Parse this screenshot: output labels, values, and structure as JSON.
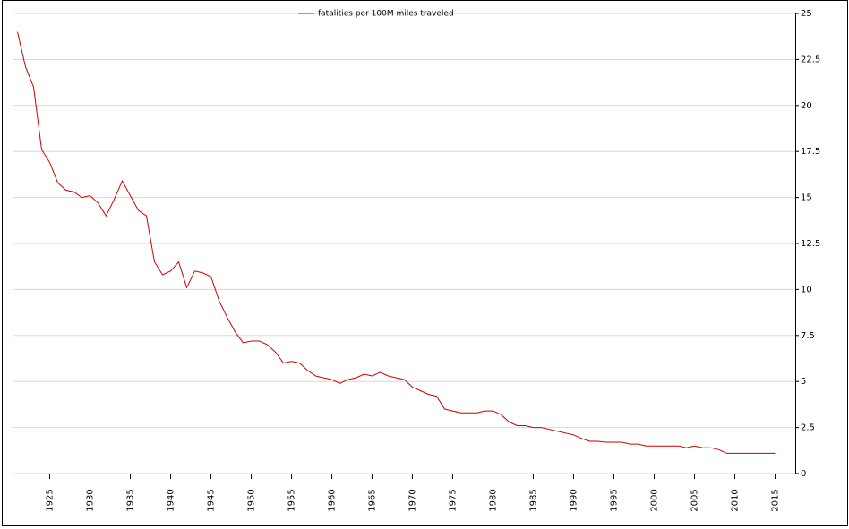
{
  "chart_data": {
    "type": "line",
    "x": [
      1921,
      1922,
      1923,
      1924,
      1925,
      1926,
      1927,
      1928,
      1929,
      1930,
      1931,
      1932,
      1933,
      1934,
      1935,
      1936,
      1937,
      1938,
      1939,
      1940,
      1941,
      1942,
      1943,
      1944,
      1945,
      1946,
      1947,
      1948,
      1949,
      1950,
      1951,
      1952,
      1953,
      1954,
      1955,
      1956,
      1957,
      1958,
      1959,
      1960,
      1961,
      1962,
      1963,
      1964,
      1965,
      1966,
      1967,
      1968,
      1969,
      1970,
      1971,
      1972,
      1973,
      1974,
      1975,
      1976,
      1977,
      1978,
      1979,
      1980,
      1981,
      1982,
      1983,
      1984,
      1985,
      1986,
      1987,
      1988,
      1989,
      1990,
      1991,
      1992,
      1993,
      1994,
      1995,
      1996,
      1997,
      1998,
      1999,
      2000,
      2001,
      2002,
      2003,
      2004,
      2005,
      2006,
      2007,
      2008,
      2009,
      2010,
      2011,
      2012,
      2013,
      2014,
      2015
    ],
    "series": [
      {
        "name": "fatalities per 100M miles traveled",
        "color": "#cc0000",
        "values": [
          24.0,
          22.1,
          21.0,
          17.6,
          16.9,
          15.8,
          15.4,
          15.3,
          15.0,
          15.1,
          14.7,
          14.0,
          14.9,
          15.9,
          15.1,
          14.3,
          14.0,
          11.5,
          10.8,
          11.0,
          11.5,
          10.1,
          11.0,
          10.9,
          10.7,
          9.4,
          8.5,
          7.7,
          7.1,
          7.2,
          7.2,
          7.0,
          6.6,
          6.0,
          6.1,
          6.0,
          5.6,
          5.3,
          5.2,
          5.1,
          4.9,
          5.1,
          5.2,
          5.4,
          5.3,
          5.5,
          5.3,
          5.2,
          5.1,
          4.7,
          4.5,
          4.3,
          4.2,
          3.5,
          3.4,
          3.3,
          3.3,
          3.3,
          3.4,
          3.4,
          3.2,
          2.8,
          2.6,
          2.6,
          2.5,
          2.5,
          2.4,
          2.3,
          2.2,
          2.1,
          1.9,
          1.75,
          1.75,
          1.7,
          1.7,
          1.7,
          1.6,
          1.6,
          1.5,
          1.5,
          1.5,
          1.5,
          1.5,
          1.4,
          1.5,
          1.4,
          1.4,
          1.3,
          1.1,
          1.1,
          1.1,
          1.1,
          1.1,
          1.1,
          1.1
        ]
      }
    ],
    "xlim": [
      1920.5,
      2017.5
    ],
    "xticks": [
      1925,
      1930,
      1935,
      1940,
      1945,
      1950,
      1955,
      1960,
      1965,
      1970,
      1975,
      1980,
      1985,
      1990,
      1995,
      2000,
      2005,
      2010,
      2015
    ],
    "ylim": [
      0,
      25
    ],
    "yticks": [
      0,
      2.5,
      5,
      7.5,
      10,
      12.5,
      15,
      17.5,
      20,
      22.5,
      25
    ],
    "grid": true,
    "legend": "top"
  }
}
